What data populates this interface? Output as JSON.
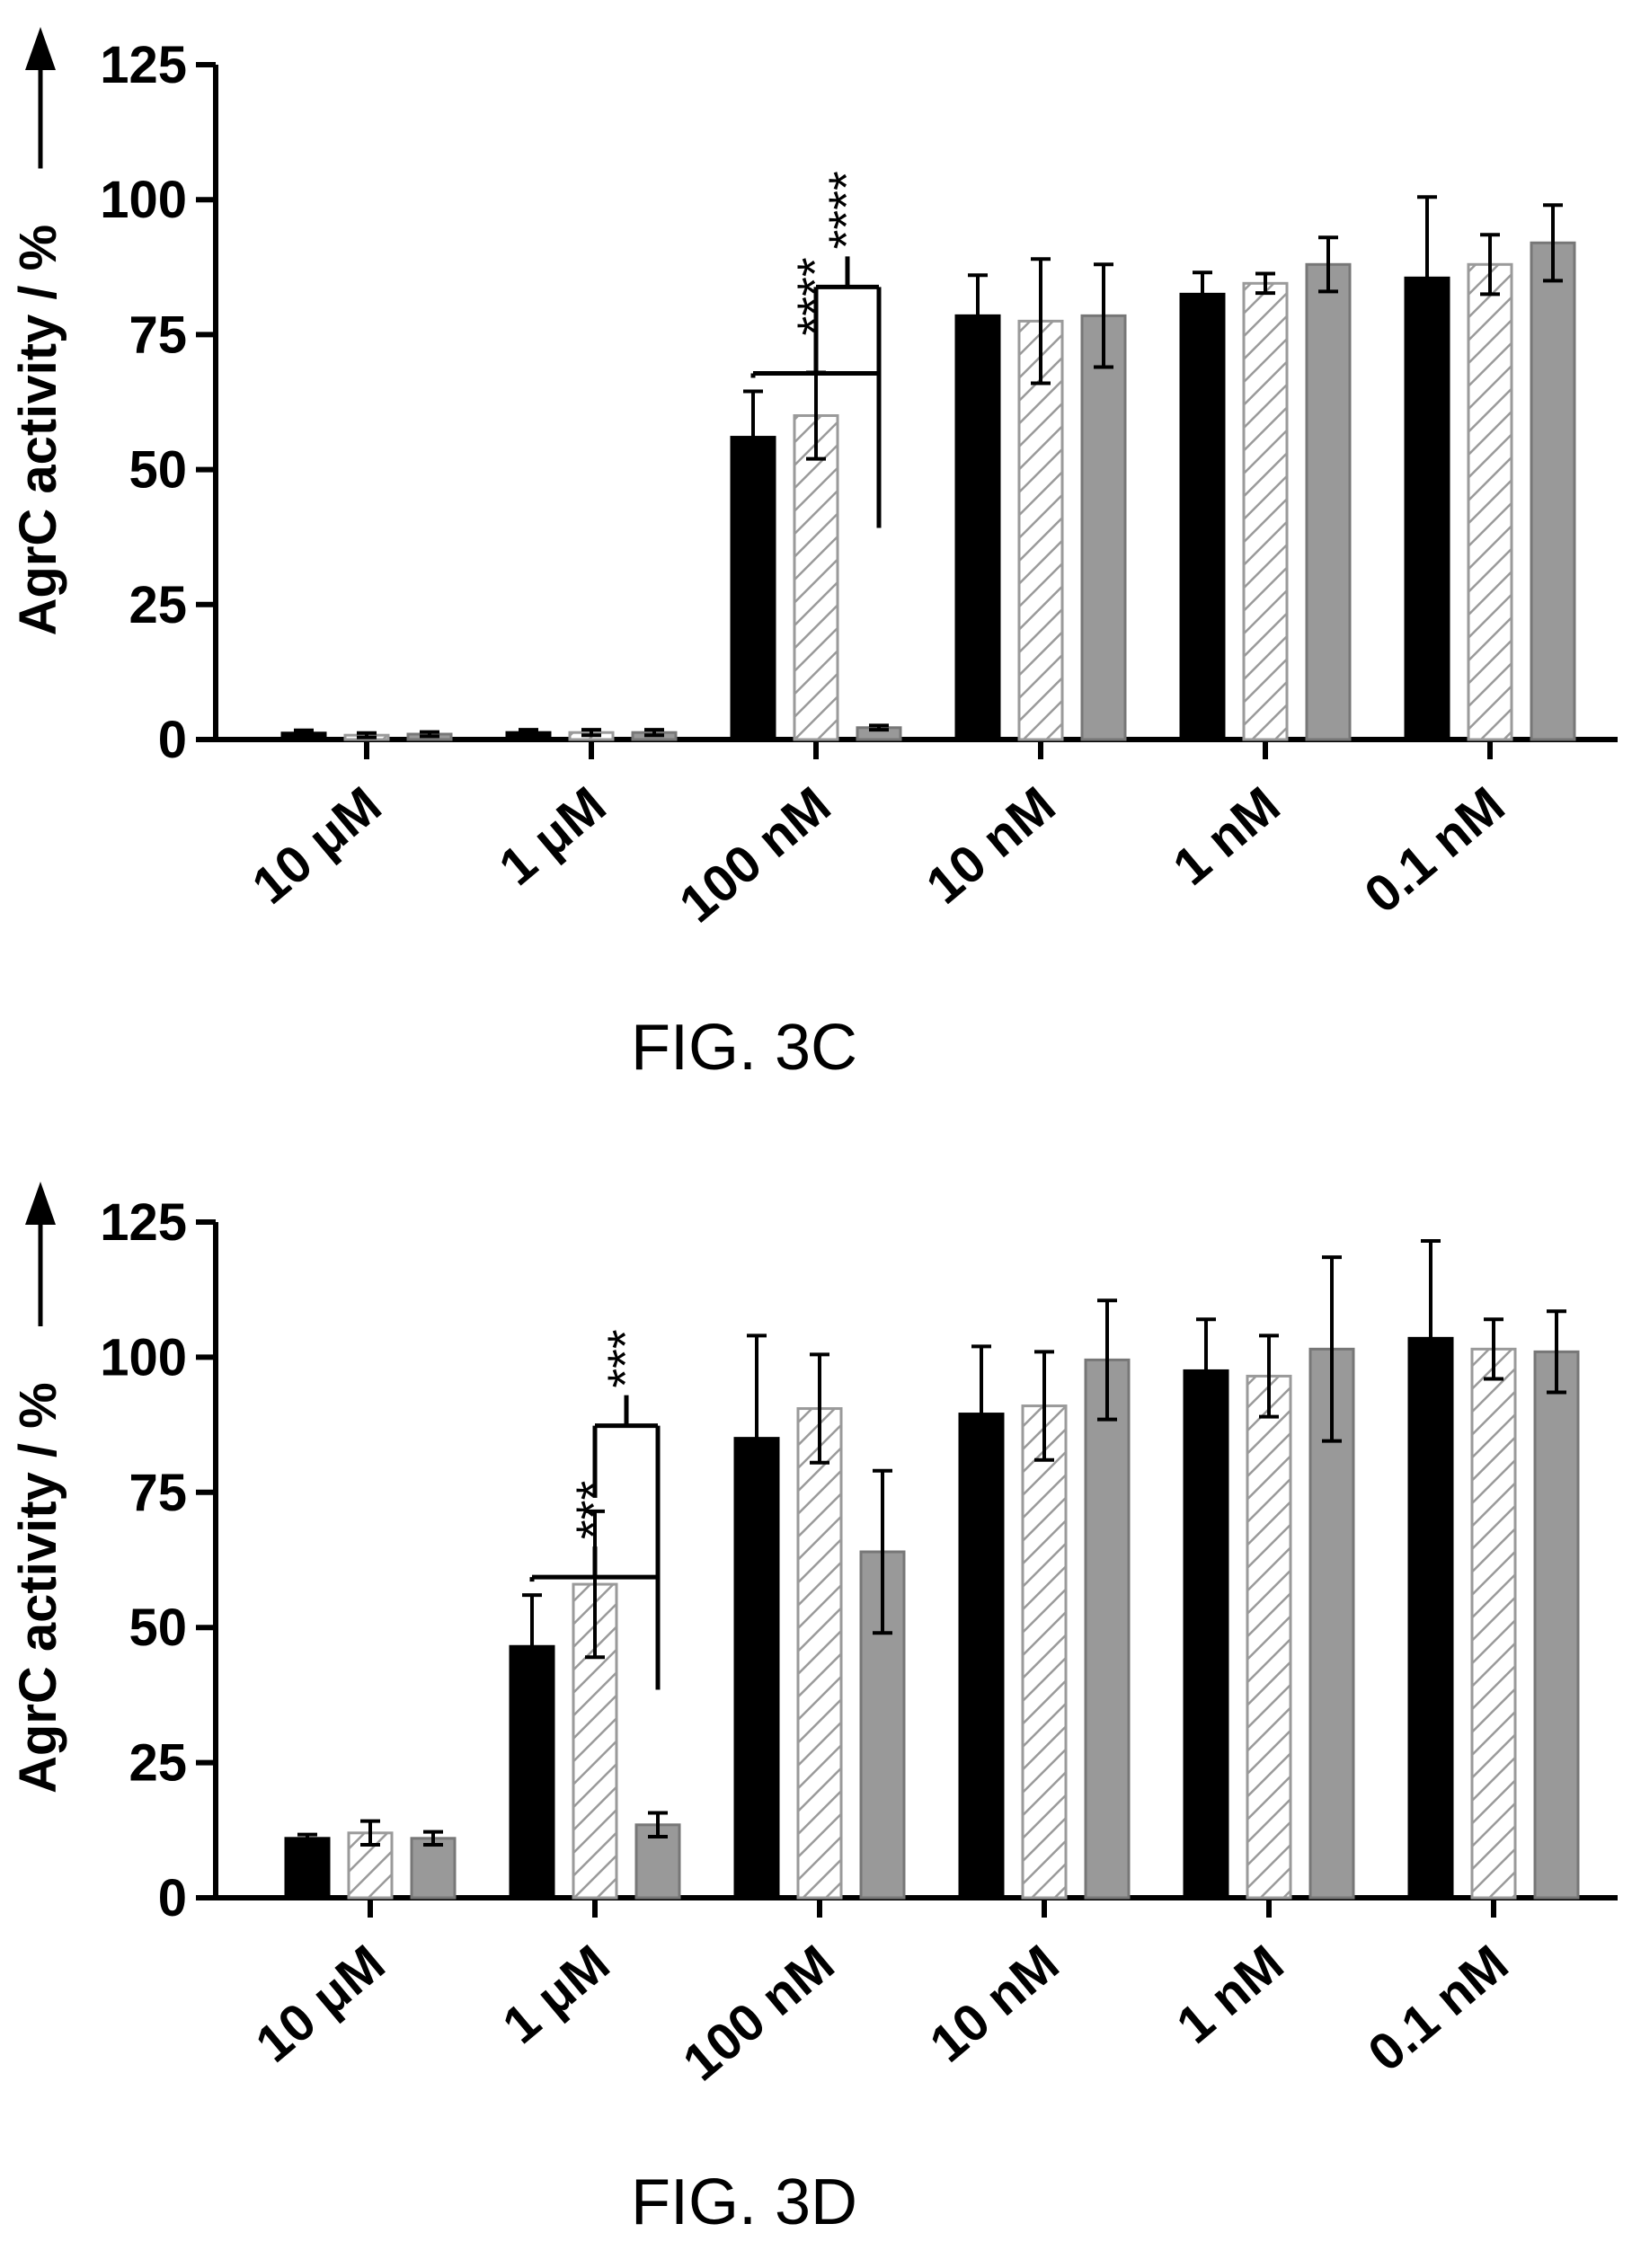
{
  "chart_data": [
    {
      "type": "bar",
      "caption": "FIG. 3C",
      "ylabel": "AgrC activity / %",
      "ylim": [
        0,
        125
      ],
      "yticks": [
        0,
        25,
        50,
        75,
        100,
        125
      ],
      "categories": [
        "10 μM",
        "1 μM",
        "100 nM",
        "10 nM",
        "1 nM",
        "0.1 nM"
      ],
      "series": [
        {
          "fill": "#000000",
          "pattern": "solid",
          "values": [
            1.2,
            1.3,
            56,
            78.5,
            82.5,
            85.5
          ],
          "errors": [
            0.5,
            0.5,
            8.5,
            7.5,
            4,
            15
          ]
        },
        {
          "fill": "#ffffff",
          "pattern": "hatched",
          "values": [
            0.8,
            1.3,
            60,
            77.5,
            84.5,
            88
          ],
          "errors": [
            0.4,
            0.5,
            8,
            11.5,
            1.8,
            5.5
          ]
        },
        {
          "fill": "#999999",
          "pattern": "solid",
          "values": [
            1,
            1.3,
            2.2,
            78.5,
            88,
            92
          ],
          "errors": [
            0.4,
            0.5,
            0.4,
            9.5,
            5,
            7
          ]
        }
      ],
      "significance": [
        {
          "category": "100 nM",
          "from_series": 0,
          "to_series": 2,
          "label": "****"
        },
        {
          "category": "100 nM",
          "from_series": 1,
          "to_series": 2,
          "label": "****"
        }
      ]
    },
    {
      "type": "bar",
      "caption": "FIG. 3D",
      "ylabel": "AgrC activity / %",
      "ylim": [
        0,
        125
      ],
      "yticks": [
        0,
        25,
        50,
        75,
        100,
        125
      ],
      "categories": [
        "10 μM",
        "1 μM",
        "100 nM",
        "10 nM",
        "1 nM",
        "0.1 nM"
      ],
      "series": [
        {
          "fill": "#000000",
          "pattern": "solid",
          "values": [
            11,
            46.5,
            85,
            89.5,
            97.5,
            103.5
          ],
          "errors": [
            0.7,
            9.5,
            19,
            12.5,
            9.5,
            18
          ]
        },
        {
          "fill": "#ffffff",
          "pattern": "hatched",
          "values": [
            12,
            58,
            90.5,
            91,
            96.5,
            101.5
          ],
          "errors": [
            2.2,
            13.5,
            10,
            10,
            7.5,
            5.5
          ]
        },
        {
          "fill": "#999999",
          "pattern": "solid",
          "values": [
            11,
            13.5,
            64,
            99.5,
            101.5,
            101
          ],
          "errors": [
            1.2,
            2.2,
            15,
            11,
            17,
            7.5
          ]
        }
      ],
      "significance": [
        {
          "category": "1 μM",
          "from_series": 0,
          "to_series": 2,
          "label": "***"
        },
        {
          "category": "1 μM",
          "from_series": 1,
          "to_series": 2,
          "label": "***"
        }
      ]
    }
  ]
}
